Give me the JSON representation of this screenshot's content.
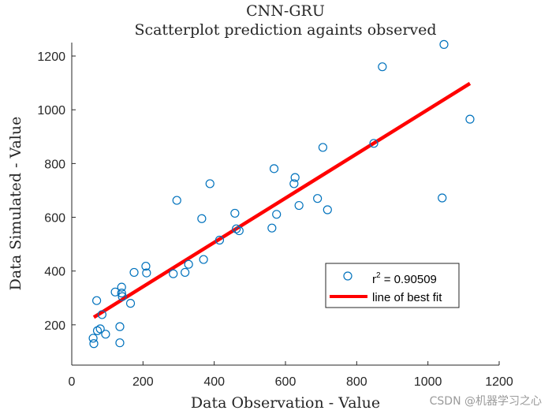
{
  "chart_data": {
    "type": "scatter",
    "title": "CNN-GRU",
    "subtitle": "Scatterplot prediction againts observed",
    "xlabel": "Data Observation - Value",
    "ylabel": "Data Simulated - Value",
    "xlim": [
      0,
      1200
    ],
    "ylim": [
      50,
      1250
    ],
    "xticks": [
      0,
      200,
      400,
      600,
      800,
      1000,
      1200
    ],
    "yticks": [
      200,
      400,
      600,
      800,
      1000,
      1200
    ],
    "grid": false,
    "legend_position": "lower-right",
    "colors": {
      "points": "#0072BD",
      "fit_line": "#FF0000",
      "axis": "#262626"
    },
    "series": [
      {
        "name": "r2 = 0.90509",
        "legend_main": "r",
        "legend_sup": "2",
        "legend_rest": " = 0.90509",
        "marker": "open-circle",
        "points": [
          [
            60,
            150
          ],
          [
            62,
            130
          ],
          [
            70,
            290
          ],
          [
            72,
            178
          ],
          [
            80,
            185
          ],
          [
            85,
            238
          ],
          [
            95,
            165
          ],
          [
            122,
            322
          ],
          [
            135,
            133
          ],
          [
            135,
            193
          ],
          [
            140,
            340
          ],
          [
            140,
            318
          ],
          [
            142,
            305
          ],
          [
            165,
            280
          ],
          [
            175,
            395
          ],
          [
            208,
            418
          ],
          [
            210,
            393
          ],
          [
            285,
            390
          ],
          [
            295,
            663
          ],
          [
            318,
            395
          ],
          [
            328,
            425
          ],
          [
            365,
            595
          ],
          [
            370,
            443
          ],
          [
            388,
            725
          ],
          [
            415,
            515
          ],
          [
            458,
            615
          ],
          [
            462,
            557
          ],
          [
            470,
            550
          ],
          [
            562,
            560
          ],
          [
            568,
            781
          ],
          [
            575,
            611
          ],
          [
            624,
            725
          ],
          [
            627,
            748
          ],
          [
            638,
            644
          ],
          [
            690,
            670
          ],
          [
            705,
            860
          ],
          [
            718,
            628
          ],
          [
            848,
            875
          ],
          [
            872,
            1160
          ],
          [
            1040,
            672
          ],
          [
            1045,
            1243
          ],
          [
            1118,
            965
          ]
        ]
      },
      {
        "name": "line of best fit",
        "type": "line",
        "points": [
          [
            62,
            228
          ],
          [
            1118,
            1098
          ]
        ]
      }
    ]
  },
  "watermark": "CSDN @机器学习之心"
}
